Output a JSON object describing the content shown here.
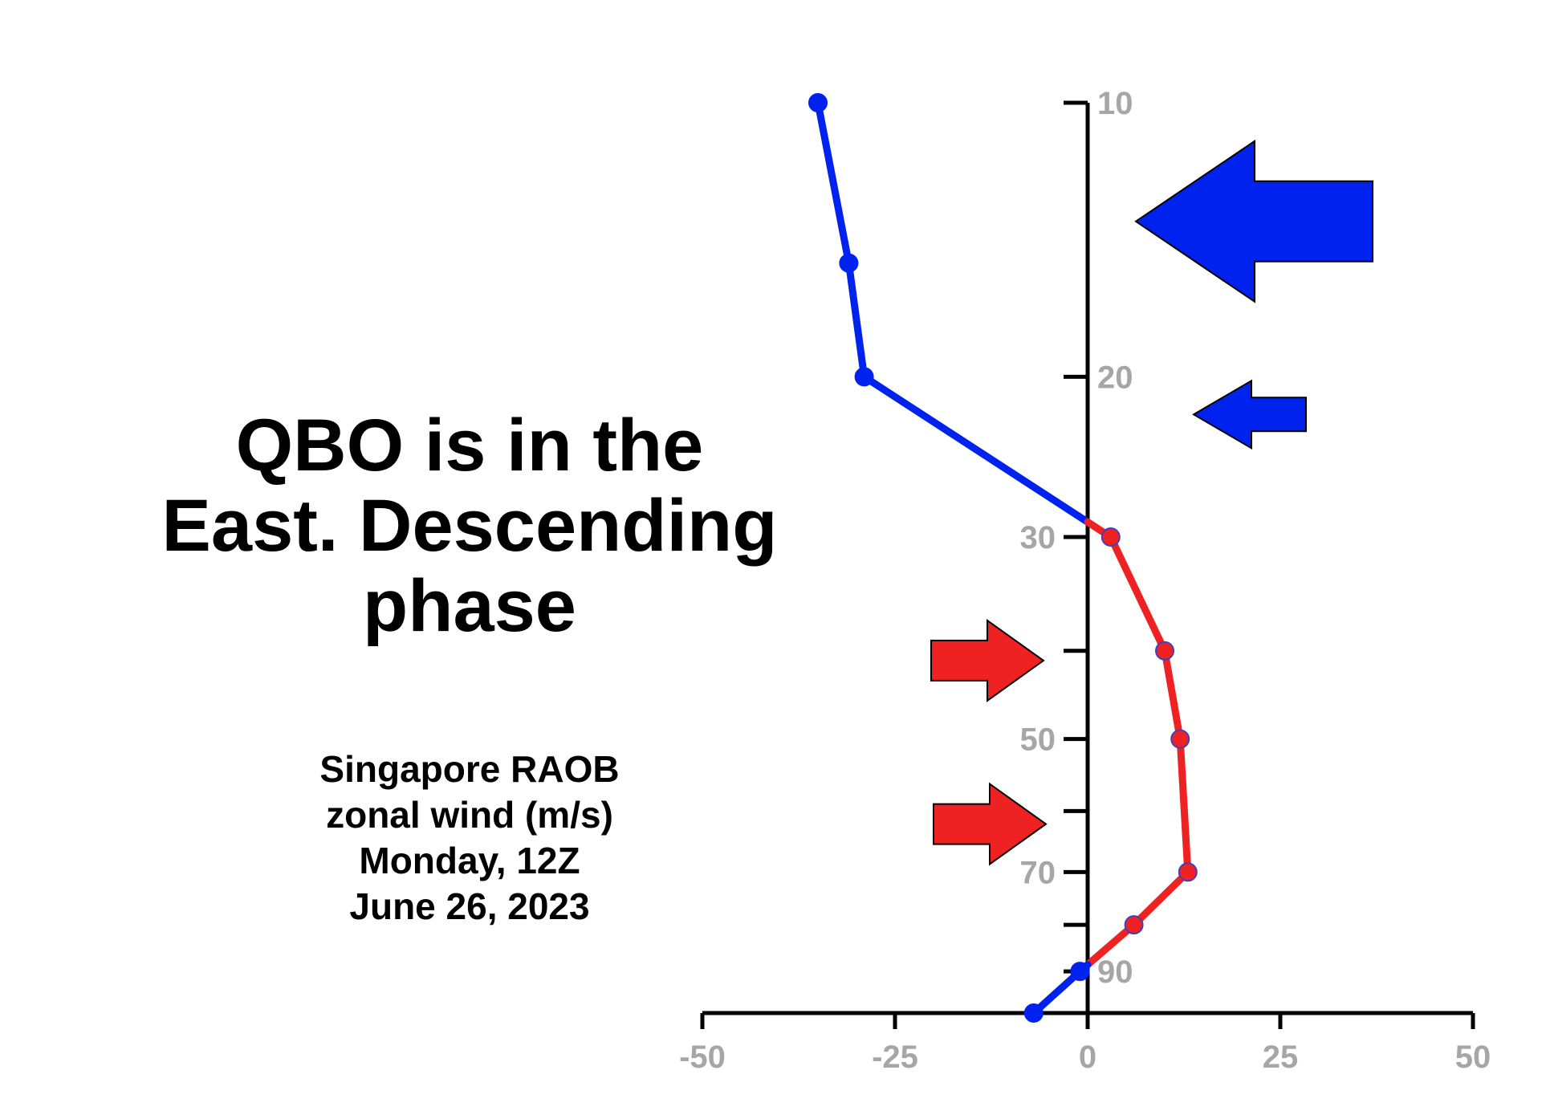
{
  "headline": {
    "line1": "QBO is in the",
    "line2": "East. Descending",
    "line3": "phase"
  },
  "caption": {
    "line1": "Singapore RAOB",
    "line2": "zonal wind (m/s)",
    "line3": "Monday, 12Z",
    "line4": "June 26, 2023"
  },
  "colors": {
    "easterly": "#0022ee",
    "westerly": "#ee2222",
    "axis": "#000000",
    "tick_label": "#a6a6a6"
  },
  "icons": {
    "easterly_arrows": "left-arrow-icon",
    "westerly_arrows": "right-arrow-icon"
  },
  "chart_data": {
    "type": "line",
    "title": "",
    "xlabel": "",
    "ylabel": "",
    "xlim": [
      -50,
      50
    ],
    "ylim": [
      100,
      10
    ],
    "y_scale": "log",
    "x_ticks": [
      {
        "value": -50,
        "label": "-50"
      },
      {
        "value": -25,
        "label": "-25"
      },
      {
        "value": 0,
        "label": "0"
      },
      {
        "value": 25,
        "label": "25"
      },
      {
        "value": 50,
        "label": "50"
      }
    ],
    "y_ticks": [
      {
        "value": 10,
        "label": "10"
      },
      {
        "value": 20,
        "label": "20"
      },
      {
        "value": 30,
        "label": "30"
      },
      {
        "value": 40,
        "label": ""
      },
      {
        "value": 50,
        "label": "50"
      },
      {
        "value": 60,
        "label": ""
      },
      {
        "value": 70,
        "label": "70"
      },
      {
        "value": 80,
        "label": ""
      },
      {
        "value": 90,
        "label": "90"
      }
    ],
    "series": [
      {
        "points": [
          {
            "pressure": 10,
            "wind": -35
          },
          {
            "pressure": 15,
            "wind": -31
          },
          {
            "pressure": 20,
            "wind": -29
          },
          {
            "pressure": 30,
            "wind": 3
          },
          {
            "pressure": 40,
            "wind": 10
          },
          {
            "pressure": 50,
            "wind": 12
          },
          {
            "pressure": 70,
            "wind": 13
          },
          {
            "pressure": 80,
            "wind": 6
          },
          {
            "pressure": 90,
            "wind": -1
          },
          {
            "pressure": 100,
            "wind": -7
          }
        ]
      }
    ],
    "annotations": [
      {
        "type": "arrow",
        "direction": "left",
        "color": "easterly",
        "pressure": 13.5,
        "size": "large"
      },
      {
        "type": "arrow",
        "direction": "left",
        "color": "easterly",
        "pressure": 22,
        "size": "small"
      },
      {
        "type": "arrow",
        "direction": "right",
        "color": "westerly",
        "pressure": 41,
        "size": "medium"
      },
      {
        "type": "arrow",
        "direction": "right",
        "color": "westerly",
        "pressure": 62,
        "size": "medium"
      }
    ]
  }
}
